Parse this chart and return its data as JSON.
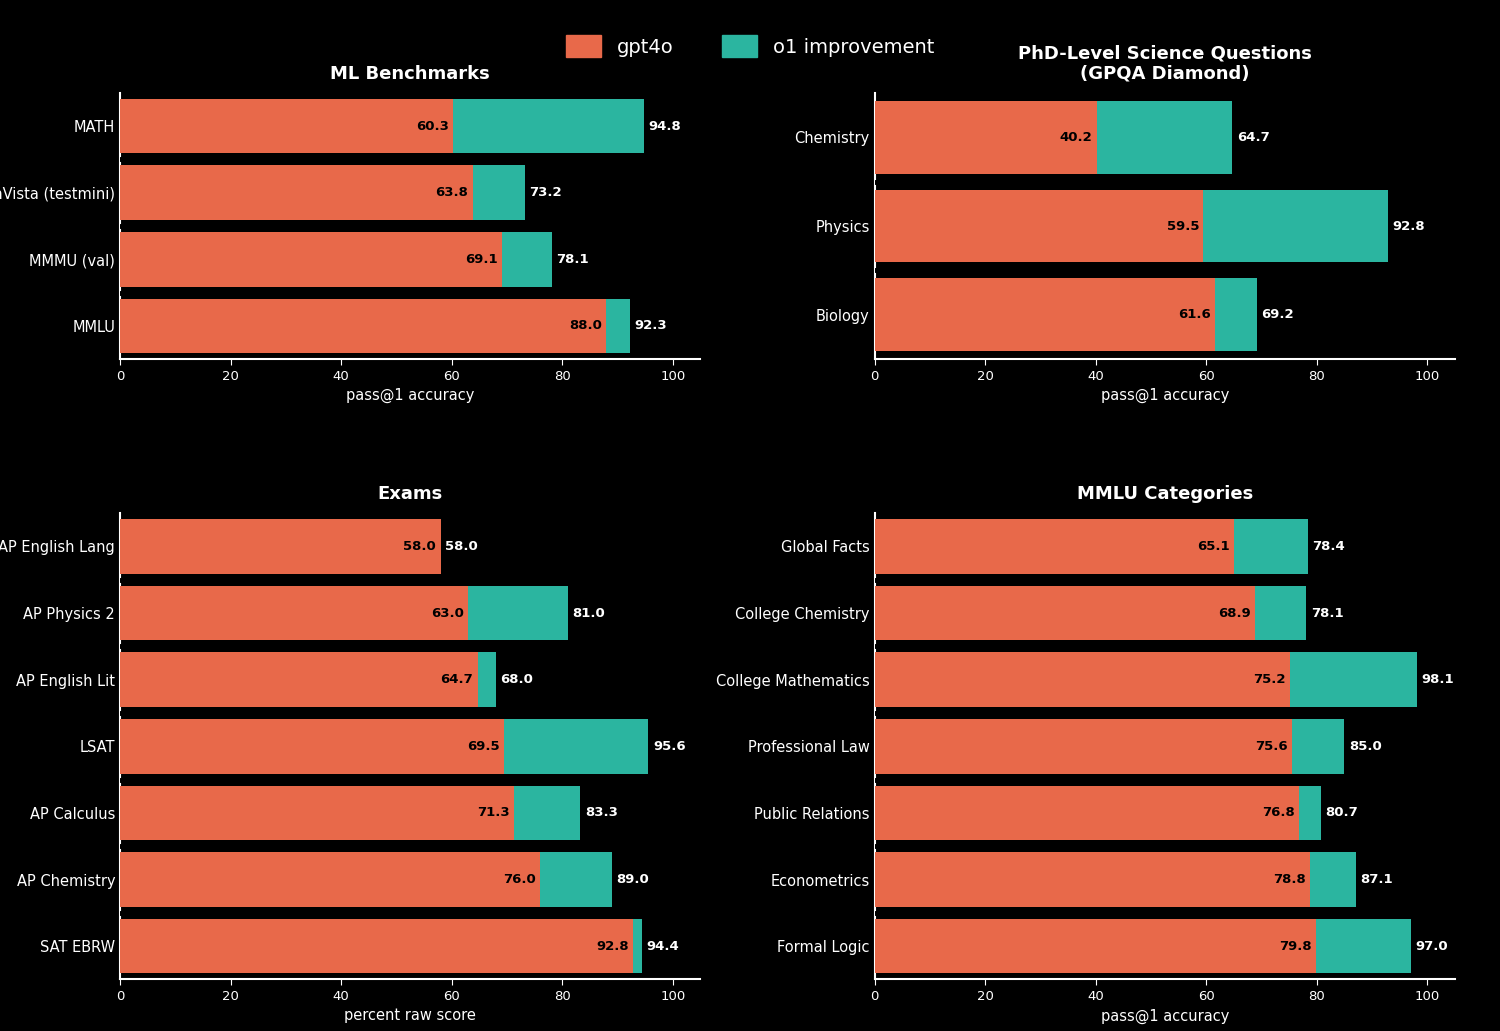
{
  "background_color": "#000000",
  "text_color": "#ffffff",
  "bar_color_gpt4o": "#e8694a",
  "bar_color_improvement": "#2bb5a0",
  "legend_labels": [
    "gpt4o",
    "o1 improvement"
  ],
  "subplots": [
    {
      "title": "ML Benchmarks",
      "xlabel": "pass@1 accuracy",
      "categories": [
        "MMLU",
        "MMMU (val)",
        "MathVista (testmini)",
        "MATH"
      ],
      "gpt4o": [
        88.0,
        69.1,
        63.8,
        60.3
      ],
      "o1_total": [
        92.3,
        78.1,
        73.2,
        94.8
      ],
      "xlim": [
        0,
        105
      ],
      "xticks": [
        0,
        20,
        40,
        60,
        80,
        100
      ]
    },
    {
      "title": "PhD-Level Science Questions\n(GPQA Diamond)",
      "xlabel": "pass@1 accuracy",
      "categories": [
        "Biology",
        "Physics",
        "Chemistry"
      ],
      "gpt4o": [
        61.6,
        59.5,
        40.2
      ],
      "o1_total": [
        69.2,
        92.8,
        64.7
      ],
      "xlim": [
        0,
        105
      ],
      "xticks": [
        0,
        20,
        40,
        60,
        80,
        100
      ]
    },
    {
      "title": "Exams",
      "xlabel": "percent raw score",
      "categories": [
        "SAT EBRW",
        "AP Chemistry",
        "AP Calculus",
        "LSAT",
        "AP English Lit",
        "AP Physics 2",
        "AP English Lang"
      ],
      "gpt4o": [
        92.8,
        76.0,
        71.3,
        69.5,
        64.7,
        63.0,
        58.0
      ],
      "o1_total": [
        94.4,
        89.0,
        83.3,
        95.6,
        68.0,
        81.0,
        58.0
      ],
      "xlim": [
        0,
        105
      ],
      "xticks": [
        0,
        20,
        40,
        60,
        80,
        100
      ]
    },
    {
      "title": "MMLU Categories",
      "xlabel": "pass@1 accuracy",
      "categories": [
        "Formal Logic",
        "Econometrics",
        "Public Relations",
        "Professional Law",
        "College Mathematics",
        "College Chemistry",
        "Global Facts"
      ],
      "gpt4o": [
        79.8,
        78.8,
        76.8,
        75.6,
        75.2,
        68.9,
        65.1
      ],
      "o1_total": [
        97.0,
        87.1,
        80.7,
        85.0,
        98.1,
        78.1,
        78.4
      ],
      "xlim": [
        0,
        105
      ],
      "xticks": [
        0,
        20,
        40,
        60,
        80,
        100
      ]
    }
  ]
}
